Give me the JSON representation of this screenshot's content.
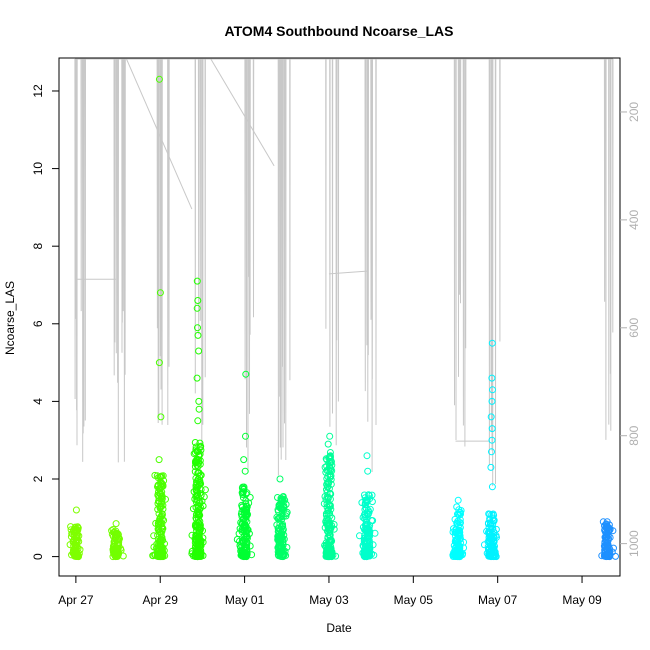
{
  "chart_data": {
    "type": "scatter",
    "title": "ATOM4 Southbound Ncoarse_LAS",
    "xlabel": "Date",
    "ylabel": "Ncoarse_LAS",
    "x_tick_labels": [
      "Apr 27",
      "Apr 29",
      "May 01",
      "May 03",
      "May 05",
      "May 07",
      "May 09"
    ],
    "x_range_days": [
      -0.4,
      12.9
    ],
    "x_tick_days": [
      0,
      2,
      4,
      6,
      8,
      10,
      12
    ],
    "ylim": [
      -0.5,
      12.85
    ],
    "y_ticks": [
      0,
      2,
      4,
      6,
      8,
      10,
      12
    ],
    "y2_ticks": [
      200,
      400,
      600,
      800,
      1000
    ],
    "y2_range": [
      100,
      1060
    ],
    "grid": false,
    "line_color": "#c8c8c8",
    "series": [
      {
        "day": 0.0,
        "color": "#7fff00",
        "typical_max": 0.8,
        "outliers": [
          1.2
        ]
      },
      {
        "day": 0.95,
        "color": "#73ff00",
        "typical_max": 0.7,
        "outliers": [
          0.85
        ]
      },
      {
        "day": 2.0,
        "color": "#4cff00",
        "typical_max": 2.2,
        "outliers": [
          2.5,
          3.6,
          5.0,
          6.8,
          12.3
        ]
      },
      {
        "day": 2.9,
        "color": "#22ff00",
        "typical_max": 3.0,
        "outliers": [
          3.5,
          3.8,
          4.0,
          4.6,
          5.3,
          5.7,
          5.9,
          6.4,
          6.6,
          7.1
        ]
      },
      {
        "day": 4.0,
        "color": "#00ff33",
        "typical_max": 1.8,
        "outliers": [
          2.2,
          2.5,
          3.1,
          4.7
        ]
      },
      {
        "day": 4.85,
        "color": "#00ff66",
        "typical_max": 1.6,
        "outliers": [
          2.0
        ]
      },
      {
        "day": 6.0,
        "color": "#00ff99",
        "typical_max": 2.7,
        "outliers": [
          2.9,
          3.1
        ]
      },
      {
        "day": 6.9,
        "color": "#00ffcc",
        "typical_max": 1.6,
        "outliers": [
          2.2,
          2.6
        ]
      },
      {
        "day": 9.05,
        "color": "#00ffff",
        "typical_max": 1.3,
        "outliers": [
          1.45
        ]
      },
      {
        "day": 9.85,
        "color": "#00f2ff",
        "typical_max": 1.2,
        "outliers": [
          1.8,
          2.3,
          2.7,
          3.0,
          3.3,
          3.6,
          4.0,
          4.3,
          4.6,
          5.5
        ]
      },
      {
        "day": 12.6,
        "color": "#1e90ff",
        "typical_max": 0.9,
        "outliers": [
          0.9
        ]
      }
    ]
  }
}
